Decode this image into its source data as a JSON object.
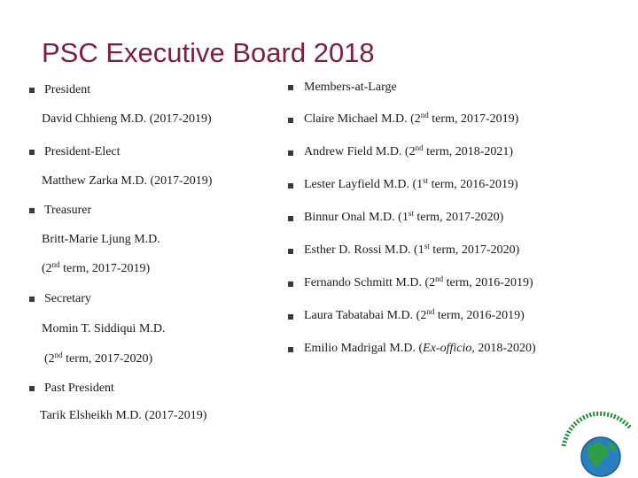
{
  "slide": {
    "title": "PSC Executive Board 2018"
  },
  "left": {
    "president_label": "President",
    "president_name": "David Chhieng M.D. (2017-2019)",
    "president_elect_label": "President-Elect",
    "president_elect_name": "Matthew Zarka M.D. (2017-2019)",
    "treasurer_label": "Treasurer",
    "treasurer_name": "Britt-Marie Ljung M.D.",
    "treasurer_term_pre": "(2",
    "treasurer_term_sup": "nd",
    "treasurer_term_post": " term, 2017-2019)",
    "secretary_label": "Secretary",
    "secretary_name": "Momin T. Siddiqui M.D.",
    "secretary_term_pre": "(2",
    "secretary_term_sup": "nd",
    "secretary_term_post": " term, 2017-2020)",
    "past_president_label": "Past President",
    "past_president_name": "Tarik Elsheikh M.D. (2017-2019)"
  },
  "right": {
    "header": "Members-at-Large",
    "members": [
      {
        "pre": "Claire Michael M.D. (2",
        "sup": "nd",
        "post": " term, 2017-2019)"
      },
      {
        "pre": "Andrew Field M.D. (2",
        "sup": "nd",
        "post": " term, 2018-2021)"
      },
      {
        "pre": "Lester Layfield M.D. (1",
        "sup": "st",
        "post": " term, 2016-2019)"
      },
      {
        "pre": "Binnur Onal M.D. (1",
        "sup": "st",
        "post": " term, 2017-2020)"
      },
      {
        "pre": "Esther D. Rossi M.D. (1",
        "sup": "st",
        "post": " term, 2017-2020)"
      },
      {
        "pre": "Fernando Schmitt M.D. (2",
        "sup": "nd",
        "post": " term, 2016-2019)"
      },
      {
        "pre": "Laura Tabatabai M.D. (2",
        "sup": "nd",
        "post": " term, 2016-2019)"
      }
    ],
    "ex_officio_pre": "Emilio Madrigal M.D. (",
    "ex_officio_italic": "Ex-officio,",
    "ex_officio_post": " 2018-2020)"
  },
  "logo": {
    "icon": "globe-logo-icon"
  },
  "colors": {
    "title": "#7a1f43",
    "bullet": "#3a3a3a",
    "logo_green": "#1f8a3a",
    "logo_blue": "#2a7fc0"
  }
}
